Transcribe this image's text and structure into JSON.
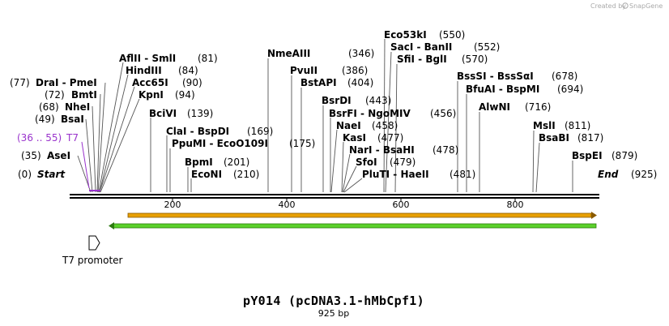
{
  "credit": {
    "text": "Created by",
    "brand": "SnapGene"
  },
  "title": "pY014 (pcDNA3.1-hMbCpf1)",
  "subtitle": "925 bp",
  "seq_length": 925,
  "ruler": {
    "start_label": "Start",
    "start_pos": "(0)",
    "end_label": "End",
    "end_pos": "(925)",
    "ticks": [
      "200",
      "400",
      "600",
      "800"
    ]
  },
  "colors": {
    "backbone": "#000000",
    "feature_purple": "#9933cc",
    "orange_bar": "#e8a000",
    "green_bar": "#5bd12a",
    "promoter": "#000000"
  },
  "primer": {
    "range": "(36 .. 55)",
    "name": "T7"
  },
  "promoter": {
    "name": "T7 promoter"
  },
  "sites": [
    {
      "id": "asei",
      "label": "AseI",
      "pos": "(35)"
    },
    {
      "id": "bsai",
      "label": "BsaI",
      "pos": "(49)"
    },
    {
      "id": "nhei",
      "label": "NheI",
      "pos": "(68)"
    },
    {
      "id": "bmti",
      "label": "BmtI",
      "pos": "(72)"
    },
    {
      "id": "drai-pmei",
      "label": "DraI - PmeI",
      "pos": "(77)"
    },
    {
      "id": "aflii-smli",
      "label": "AflII - SmlI",
      "pos": "(81)"
    },
    {
      "id": "hindiii",
      "label": "HindIII",
      "pos": "(84)"
    },
    {
      "id": "acc65i",
      "label": "Acc65I",
      "pos": "(90)"
    },
    {
      "id": "kpni",
      "label": "KpnI",
      "pos": "(94)"
    },
    {
      "id": "bcivi",
      "label": "BciVI",
      "pos": "(139)"
    },
    {
      "id": "clai-bspdi",
      "label": "ClaI - BspDI",
      "pos": "(169)"
    },
    {
      "id": "ppumi-ecoo109i",
      "label": "PpuMI - EcoO109I",
      "pos": "(175)"
    },
    {
      "id": "bpmi",
      "label": "BpmI",
      "pos": "(201)"
    },
    {
      "id": "econi",
      "label": "EcoNI",
      "pos": "(210)"
    },
    {
      "id": "nmeaiii",
      "label": "NmeAIII",
      "pos": "(346)"
    },
    {
      "id": "pvuii",
      "label": "PvuII",
      "pos": "(386)"
    },
    {
      "id": "bstapi",
      "label": "BstAPI",
      "pos": "(404)"
    },
    {
      "id": "bsrdi",
      "label": "BsrDI",
      "pos": "(443)"
    },
    {
      "id": "bsrfi-ngomiv",
      "label": "BsrFI - NgoMIV",
      "pos": "(456)"
    },
    {
      "id": "naei",
      "label": "NaeI",
      "pos": "(458)"
    },
    {
      "id": "kasi",
      "label": "KasI",
      "pos": "(477)"
    },
    {
      "id": "nari-bsahi",
      "label": "NarI - BsaHI",
      "pos": "(478)"
    },
    {
      "id": "sfoi",
      "label": "SfoI",
      "pos": "(479)"
    },
    {
      "id": "pluti-haeii",
      "label": "PluTI - HaeII",
      "pos": "(481)"
    },
    {
      "id": "eco53ki",
      "label": "Eco53kI",
      "pos": "(550)"
    },
    {
      "id": "saci-banii",
      "label": "SacI - BanII",
      "pos": "(552)"
    },
    {
      "id": "sfii-bgli",
      "label": "SfiI - BglI",
      "pos": "(570)"
    },
    {
      "id": "bsssi-bsssai",
      "label": "BssSI - BssSαI",
      "pos": "(678)"
    },
    {
      "id": "bfuai-bspmi",
      "label": "BfuAI - BspMI",
      "pos": "(694)"
    },
    {
      "id": "alwni",
      "label": "AlwNI",
      "pos": "(716)"
    },
    {
      "id": "msli",
      "label": "MslI",
      "pos": "(811)"
    },
    {
      "id": "bsabi",
      "label": "BsaBI",
      "pos": "(817)"
    },
    {
      "id": "bspei",
      "label": "BspEI",
      "pos": "(879)"
    }
  ]
}
